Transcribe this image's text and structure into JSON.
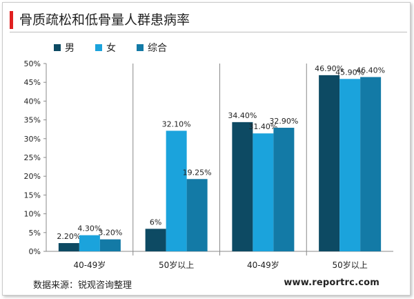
{
  "title": "骨质疏松和低骨量人群患病率",
  "legend": [
    {
      "name": "男",
      "color": "#0d4a63"
    },
    {
      "name": "女",
      "color": "#1ba3dc"
    },
    {
      "name": "综合",
      "color": "#137aa6"
    }
  ],
  "footer": {
    "source": "数据来源：锐观咨询整理",
    "site": "www.reportrc.com"
  },
  "chart_data": {
    "type": "bar",
    "categories": [
      "40-49岁",
      "50岁以上",
      "40-49岁",
      "50岁以上"
    ],
    "series": [
      {
        "name": "男",
        "color": "#0d4a63",
        "values": [
          2.2,
          6,
          34.4,
          46.9
        ],
        "labels": [
          "2.20%",
          "6%",
          "34.40%",
          "46.90%"
        ]
      },
      {
        "name": "女",
        "color": "#1ba3dc",
        "values": [
          4.3,
          32.1,
          31.4,
          45.9
        ],
        "labels": [
          "4.30%",
          "32.10%",
          "31.40%",
          "45.90%"
        ]
      },
      {
        "name": "综合",
        "color": "#137aa6",
        "values": [
          3.2,
          19.25,
          32.9,
          46.4
        ],
        "labels": [
          "3.20%",
          "19.25%",
          "32.90%",
          "46.40%"
        ]
      }
    ],
    "y_ticks": [
      "0%",
      "5%",
      "10%",
      "15%",
      "20%",
      "25%",
      "30%",
      "35%",
      "40%",
      "45%",
      "50%"
    ],
    "ylim": [
      0,
      50
    ],
    "grid": false,
    "legend_position": "top-left"
  }
}
